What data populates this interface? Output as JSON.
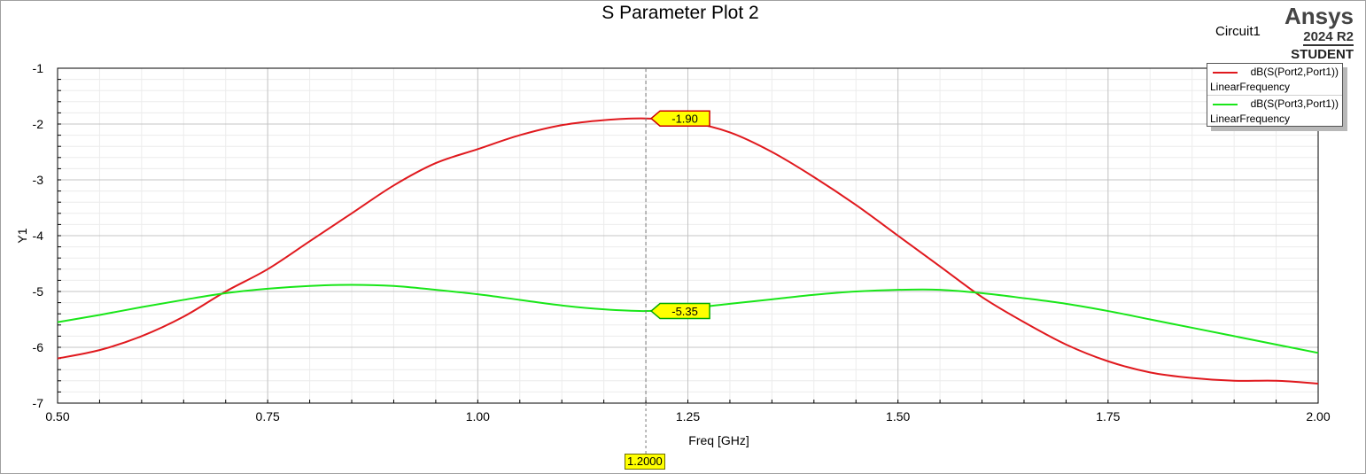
{
  "chart_data": {
    "type": "line",
    "title": "S Parameter Plot 2",
    "xlabel": "Freq [GHz]",
    "ylabel": "Y1",
    "xlim": [
      0.5,
      2.0
    ],
    "ylim": [
      -7,
      -1
    ],
    "x_ticks": [
      "0.50",
      "0.75",
      "1.00",
      "1.25",
      "1.50",
      "1.75",
      "2.00"
    ],
    "y_ticks": [
      "-1",
      "-2",
      "-3",
      "-4",
      "-5",
      "-6",
      "-7"
    ],
    "grid": true,
    "legend_position": "top-right",
    "series": [
      {
        "name": "dB(S(Port2,Port1))",
        "sweep": "LinearFrequency",
        "color": "#e0191e",
        "x": [
          0.5,
          0.55,
          0.6,
          0.65,
          0.7,
          0.75,
          0.8,
          0.85,
          0.9,
          0.95,
          1.0,
          1.05,
          1.1,
          1.15,
          1.2,
          1.25,
          1.3,
          1.35,
          1.4,
          1.45,
          1.5,
          1.55,
          1.6,
          1.65,
          1.7,
          1.75,
          1.8,
          1.85,
          1.9,
          1.95,
          2.0
        ],
        "y": [
          -6.2,
          -6.05,
          -5.8,
          -5.45,
          -5.0,
          -4.6,
          -4.1,
          -3.6,
          -3.1,
          -2.7,
          -2.45,
          -2.2,
          -2.02,
          -1.93,
          -1.9,
          -1.96,
          -2.15,
          -2.5,
          -2.95,
          -3.45,
          -4.0,
          -4.55,
          -5.1,
          -5.55,
          -5.95,
          -6.25,
          -6.45,
          -6.55,
          -6.6,
          -6.6,
          -6.65
        ]
      },
      {
        "name": "dB(S(Port3,Port1))",
        "sweep": "LinearFrequency",
        "color": "#19e619",
        "x": [
          0.5,
          0.55,
          0.6,
          0.65,
          0.7,
          0.75,
          0.8,
          0.85,
          0.9,
          0.95,
          1.0,
          1.05,
          1.1,
          1.15,
          1.2,
          1.25,
          1.3,
          1.35,
          1.4,
          1.45,
          1.5,
          1.55,
          1.6,
          1.65,
          1.7,
          1.75,
          1.8,
          1.85,
          1.9,
          1.95,
          2.0
        ],
        "y": [
          -5.55,
          -5.42,
          -5.28,
          -5.15,
          -5.03,
          -4.95,
          -4.9,
          -4.88,
          -4.9,
          -4.97,
          -5.05,
          -5.15,
          -5.25,
          -5.32,
          -5.35,
          -5.3,
          -5.22,
          -5.14,
          -5.06,
          -5.0,
          -4.97,
          -4.97,
          -5.03,
          -5.12,
          -5.22,
          -5.35,
          -5.5,
          -5.65,
          -5.8,
          -5.95,
          -6.1
        ]
      }
    ],
    "marker": {
      "x": 1.2,
      "x_label": "1.2000",
      "labels": [
        {
          "series": 0,
          "value": -1.9,
          "text": "-1.90",
          "fill": "#ffff00",
          "border": "#cc0000"
        },
        {
          "series": 1,
          "value": -5.35,
          "text": "-5.35",
          "fill": "#ffff00",
          "border": "#00aa00"
        }
      ]
    }
  },
  "header": {
    "circuit": "Circuit1",
    "brand": "Ansys",
    "version": "2024 R2",
    "edition": "STUDENT"
  },
  "legend": [
    {
      "name": "dB(S(Port2,Port1))",
      "sweep": "LinearFrequency"
    },
    {
      "name": "dB(S(Port3,Port1))",
      "sweep": "LinearFrequency"
    }
  ]
}
